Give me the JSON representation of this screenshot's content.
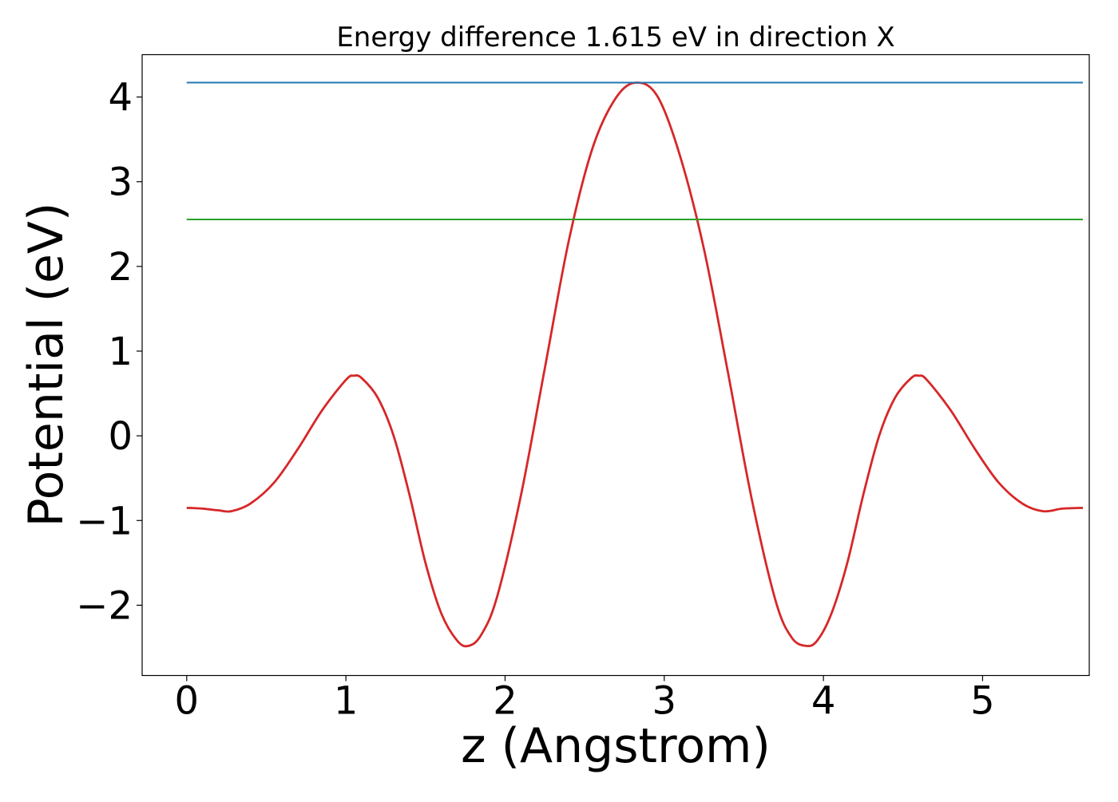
{
  "chart_data": {
    "type": "line",
    "title": "Energy difference 1.615 eV in direction X",
    "xlabel": "z (Angstrom)",
    "ylabel": "Potential (eV)",
    "xlim": [
      -0.28,
      5.67
    ],
    "ylim": [
      -2.83,
      4.5
    ],
    "xticks": [
      0,
      1,
      2,
      3,
      4,
      5
    ],
    "xtick_labels": [
      "0",
      "1",
      "2",
      "3",
      "4",
      "5"
    ],
    "yticks": [
      -2,
      -1,
      0,
      1,
      2,
      3,
      4
    ],
    "ytick_labels": [
      "−2",
      "−1",
      "0",
      "1",
      "2",
      "3",
      "4"
    ],
    "grid": false,
    "legend": false,
    "series": [
      {
        "color": "#d62728",
        "style": "curve",
        "x": [
          0.0,
          0.1,
          0.2,
          0.28,
          0.4,
          0.55,
          0.7,
          0.85,
          1.0,
          1.05,
          1.1,
          1.2,
          1.3,
          1.4,
          1.5,
          1.6,
          1.7,
          1.77,
          1.85,
          1.95,
          2.1,
          2.25,
          2.4,
          2.55,
          2.7,
          2.83,
          2.96,
          3.1,
          3.25,
          3.4,
          3.55,
          3.7,
          3.8,
          3.89,
          3.96,
          4.05,
          4.15,
          4.25,
          4.35,
          4.45,
          4.55,
          4.6,
          4.65,
          4.8,
          4.95,
          5.1,
          5.25,
          5.38,
          5.5,
          5.63
        ],
        "y": [
          -0.85,
          -0.86,
          -0.88,
          -0.89,
          -0.8,
          -0.55,
          -0.15,
          0.3,
          0.66,
          0.71,
          0.68,
          0.45,
          0.0,
          -0.7,
          -1.5,
          -2.1,
          -2.42,
          -2.48,
          -2.35,
          -1.9,
          -0.7,
          0.8,
          2.3,
          3.4,
          4.0,
          4.17,
          4.0,
          3.3,
          2.2,
          0.75,
          -0.75,
          -1.95,
          -2.38,
          -2.48,
          -2.42,
          -2.1,
          -1.5,
          -0.7,
          0.0,
          0.45,
          0.68,
          0.71,
          0.66,
          0.3,
          -0.15,
          -0.55,
          -0.8,
          -0.89,
          -0.86,
          -0.85
        ]
      },
      {
        "color": "#1f77b4",
        "style": "straight",
        "x": [
          0.0,
          5.63
        ],
        "y": [
          4.17,
          4.17
        ]
      },
      {
        "color": "#2ca02c",
        "style": "straight",
        "x": [
          0.0,
          5.63
        ],
        "y": [
          2.555,
          2.555
        ]
      }
    ]
  }
}
